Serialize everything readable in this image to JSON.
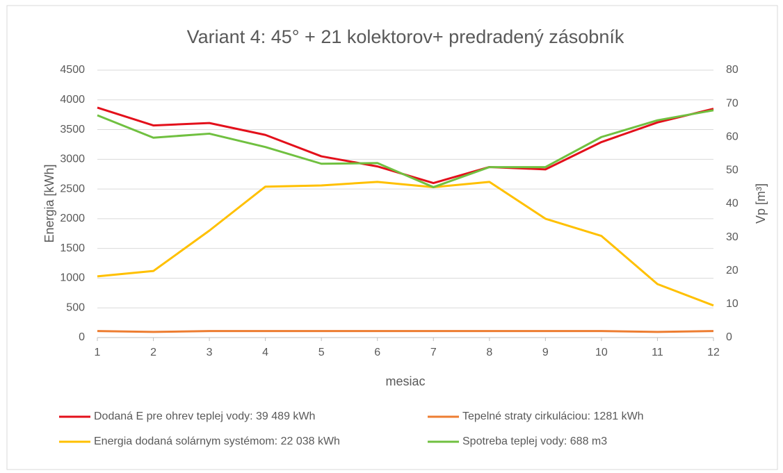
{
  "chart_data": {
    "type": "line",
    "title": "Variant 4: 45° + 21 kolektorov+ predradený zásobník",
    "x_label": "mesiac",
    "y_label": "Energia [kWh]",
    "y2_label": "Vp [m³]",
    "x": [
      1,
      2,
      3,
      4,
      5,
      6,
      7,
      8,
      9,
      10,
      11,
      12
    ],
    "xlim": [
      1,
      12
    ],
    "xticks": [
      1,
      2,
      3,
      4,
      5,
      6,
      7,
      8,
      9,
      10,
      11,
      12
    ],
    "ylim": [
      0,
      4500
    ],
    "yticks": [
      0,
      500,
      1000,
      1500,
      2000,
      2500,
      3000,
      3500,
      4000,
      4500
    ],
    "y2lim": [
      0,
      80
    ],
    "y2ticks": [
      0,
      10,
      20,
      30,
      40,
      50,
      60,
      70,
      80
    ],
    "grid": true,
    "series": [
      {
        "name": "Dodaná E pre ohrev teplej vody: 39 489 kWh",
        "color": "#e3101b",
        "values": [
          3870,
          3570,
          3610,
          3410,
          3050,
          2880,
          2600,
          2870,
          2830,
          3290,
          3620,
          3850
        ]
      },
      {
        "name": "Tepelné straty cirkuláciou: 1281 kWh",
        "color": "#ed7d31",
        "values": [
          110,
          95,
          110,
          110,
          110,
          110,
          110,
          110,
          110,
          110,
          95,
          110
        ]
      },
      {
        "name": "Energia dodaná solárnym systémom: 22 038 kWh",
        "color": "#ffc000",
        "values": [
          1030,
          1120,
          1800,
          2540,
          2560,
          2620,
          2530,
          2620,
          2000,
          1710,
          900,
          540
        ]
      },
      {
        "name": "Spotreba teplej vody: 688 m3",
        "color": "#70c040",
        "axis": "y2",
        "values": [
          66.5,
          59.8,
          61,
          57,
          52,
          52.2,
          45,
          51,
          51,
          60,
          65,
          68
        ]
      }
    ]
  }
}
